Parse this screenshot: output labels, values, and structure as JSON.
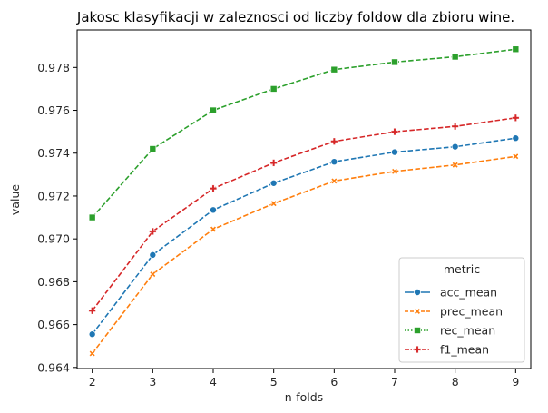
{
  "chart_data": {
    "type": "line",
    "title": "Jakosc klasyfikacji w zaleznosci od liczby foldow dla zbioru wine.",
    "xlabel": "n-folds",
    "ylabel": "value",
    "x": [
      2,
      3,
      4,
      5,
      6,
      7,
      8,
      9
    ],
    "xlim": [
      1.75,
      9.25
    ],
    "ylim": [
      0.96395,
      0.97975
    ],
    "xticks": [
      "2",
      "3",
      "4",
      "5",
      "6",
      "7",
      "8",
      "9"
    ],
    "yticks": [
      "0.964",
      "0.966",
      "0.968",
      "0.970",
      "0.972",
      "0.974",
      "0.976",
      "0.978"
    ],
    "ytick_values": [
      0.964,
      0.966,
      0.968,
      0.97,
      0.972,
      0.974,
      0.976,
      0.978
    ],
    "grid": false,
    "legend": {
      "title": "metric",
      "placement": "lower-right"
    },
    "series": [
      {
        "name": "acc_mean",
        "color": "#1f77b4",
        "marker": "circle",
        "values": [
          0.96555,
          0.96925,
          0.97135,
          0.9726,
          0.9736,
          0.97405,
          0.9743,
          0.9747
        ]
      },
      {
        "name": "prec_mean",
        "color": "#ff7f0e",
        "marker": "x-bold",
        "values": [
          0.96465,
          0.96835,
          0.97045,
          0.97165,
          0.9727,
          0.97315,
          0.97345,
          0.97385
        ]
      },
      {
        "name": "rec_mean",
        "color": "#2ca02c",
        "marker": "square",
        "values": [
          0.971,
          0.9742,
          0.976,
          0.977,
          0.9779,
          0.97825,
          0.9785,
          0.97885
        ]
      },
      {
        "name": "f1_mean",
        "color": "#d62728",
        "marker": "plus",
        "values": [
          0.96665,
          0.97035,
          0.97235,
          0.97355,
          0.97455,
          0.975,
          0.97525,
          0.97565
        ]
      }
    ]
  }
}
